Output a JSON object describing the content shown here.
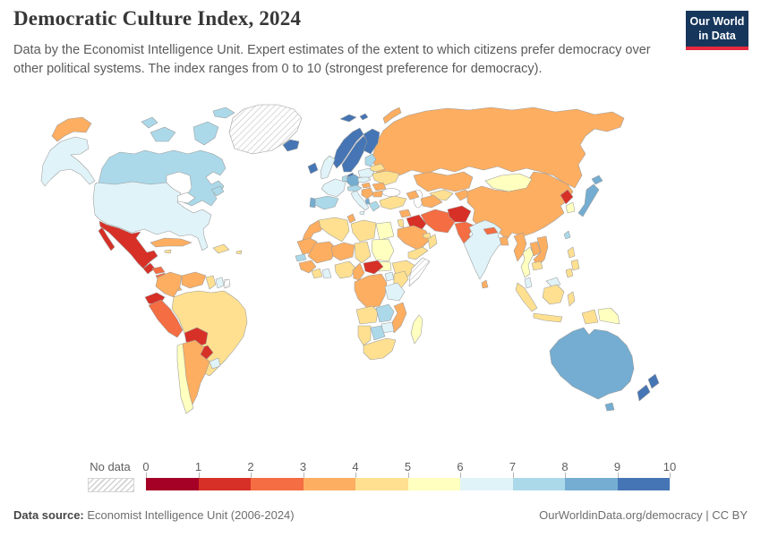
{
  "header": {
    "title": "Democratic Culture Index, 2024",
    "subtitle": "Data by the Economist Intelligence Unit. Expert estimates of the extent to which citizens prefer democracy over other political systems. The index ranges from 0 to 10 (strongest preference for democracy).",
    "logo_line1": "Our World",
    "logo_line2": "in Data",
    "logo_bg": "#16365c",
    "logo_accent": "#e5293e"
  },
  "map": {
    "legend": {
      "no_data_label": "No data",
      "ticks": [
        "0",
        "1",
        "2",
        "3",
        "4",
        "5",
        "6",
        "7",
        "8",
        "9",
        "10"
      ],
      "bins": [
        {
          "label": "0-1",
          "color": "#a50026"
        },
        {
          "label": "1-2",
          "color": "#d73027"
        },
        {
          "label": "2-3",
          "color": "#f46d43"
        },
        {
          "label": "3-4",
          "color": "#fdae61"
        },
        {
          "label": "4-5",
          "color": "#fee090"
        },
        {
          "label": "5-6",
          "color": "#ffffbf"
        },
        {
          "label": "6-7",
          "color": "#e0f3f8"
        },
        {
          "label": "7-8",
          "color": "#abd9e9"
        },
        {
          "label": "8-9",
          "color": "#74add1"
        },
        {
          "label": "9-10",
          "color": "#4575b4"
        }
      ]
    },
    "regions": {
      "chukotka": "#fdae61",
      "alaska": "#e0f3f8",
      "canada": "#abd9e9",
      "greenland": "no-data",
      "usa": "#e0f3f8",
      "mexico": "#d73027",
      "guatemala": "#d73027",
      "honduras": "#f46d43",
      "nicaragua": "#f46d43",
      "costa-rica": "#e0f3f8",
      "panama": "#fdae61",
      "cuba": "#fdae61",
      "jamaica": "#fee090",
      "hispaniola": "#fee090",
      "puerto-rico": "#fee090",
      "colombia": "#fdae61",
      "venezuela": "#fdae61",
      "guyana": "#fee090",
      "suriname": "#e0f3f8",
      "french-guiana": "no-data",
      "ecuador": "#d73027",
      "peru": "#f46d43",
      "brazil": "#fee090",
      "bolivia": "#d73027",
      "paraguay": "#d73027",
      "chile": "#ffffbf",
      "argentina": "#fdae61",
      "uruguay": "#e0f3f8",
      "iceland": "#4575b4",
      "svalbard": "#4575b4",
      "norway": "#4575b4",
      "sweden": "#4575b4",
      "finland": "#4575b4",
      "denmark": "#4575b4",
      "ireland": "#4575b4",
      "uk": "#e0f3f8",
      "france": "#e0f3f8",
      "spain": "#abd9e9",
      "portugal": "#74add1",
      "germany": "#74add1",
      "benelux": "#abd9e9",
      "alpine": "#abd9e9",
      "italy": "#e0f3f8",
      "czech-slovakia": "#e0f3f8",
      "poland": "#e0f3f8",
      "baltics": "#abd9e9",
      "belarus": "#fee090",
      "ukraine": "#fee090",
      "hungary": "#fdae61",
      "romania": "#fdae61",
      "balkans": "#fdae61",
      "bulgaria": "#fdae61",
      "albania": "#74add1",
      "greece": "#abd9e9",
      "russia": "#fdae61",
      "novaya-zemlya": "#fdae61",
      "kazakhstan": "#fdae61",
      "uzbekistan": "#fee090",
      "turkmenistan": "#fdae61",
      "kyrgyzstan-tajikistan": "#fdae61",
      "turkey": "#fee090",
      "caucasus": "#fdae61",
      "syria": "#fdae61",
      "iraq": "#d73027",
      "jordan": "#fee090",
      "saudi-arabia": "#fdae61",
      "yemen": "#fee090",
      "oman": "#fee090",
      "uae": "#fee090",
      "iran": "#f46d43",
      "afghanistan": "#d73027",
      "pakistan": "#f46d43",
      "india": "#e0f3f8",
      "nepal": "#f46d43",
      "bangladesh": "#fdae61",
      "sri-lanka": "#fdae61",
      "mongolia": "#ffffbf",
      "china": "#fdae61",
      "north-korea": "#d73027",
      "south-korea": "#ffffbf",
      "japan": "#74add1",
      "taiwan": "#abd9e9",
      "myanmar": "#fdae61",
      "thailand": "#ffffbf",
      "laos": "#fdae61",
      "vietnam": "#fdae61",
      "cambodia": "#fee090",
      "malaysia": "#e0f3f8",
      "indonesia": "#fee090",
      "philippines": "#fee090",
      "papua-new-guinea": "#ffffbf",
      "australia": "#74add1",
      "tasmania": "#74add1",
      "new-zealand": "#4575b4",
      "morocco": "#fdae61",
      "algeria": "#fee090",
      "tunisia": "#fdae61",
      "libya": "#fee090",
      "egypt": "#ffffbf",
      "mauritania": "#fdae61",
      "mali": "#fdae61",
      "niger": "#fdae61",
      "chad": "#fee090",
      "sudan": "#ffffbf",
      "south-sudan": "#ffffbf",
      "ethiopia": "#fee090",
      "somalia": "no-data",
      "senegal": "#abd9e9",
      "guinea": "#fdae61",
      "ivory-coast": "#fee090",
      "ghana": "#e0f3f8",
      "nigeria": "#fee090",
      "cameroon": "#fdae61",
      "central-african-republic": "#d73027",
      "drc": "#fdae61",
      "uganda": "#e0f3f8",
      "kenya": "#fee090",
      "tanzania": "#e0f3f8",
      "angola": "#fee090",
      "zambia": "#abd9e9",
      "zimbabwe": "#e0f3f8",
      "mozambique": "#fdae61",
      "botswana": "#abd9e9",
      "namibia": "#fee090",
      "south-africa": "#fee090",
      "madagascar": "#ffffbf"
    }
  },
  "footer": {
    "source_label": "Data source:",
    "source_text": "Economist Intelligence Unit (2006-2024)",
    "right_text": "OurWorldinData.org/democracy | CC BY"
  }
}
